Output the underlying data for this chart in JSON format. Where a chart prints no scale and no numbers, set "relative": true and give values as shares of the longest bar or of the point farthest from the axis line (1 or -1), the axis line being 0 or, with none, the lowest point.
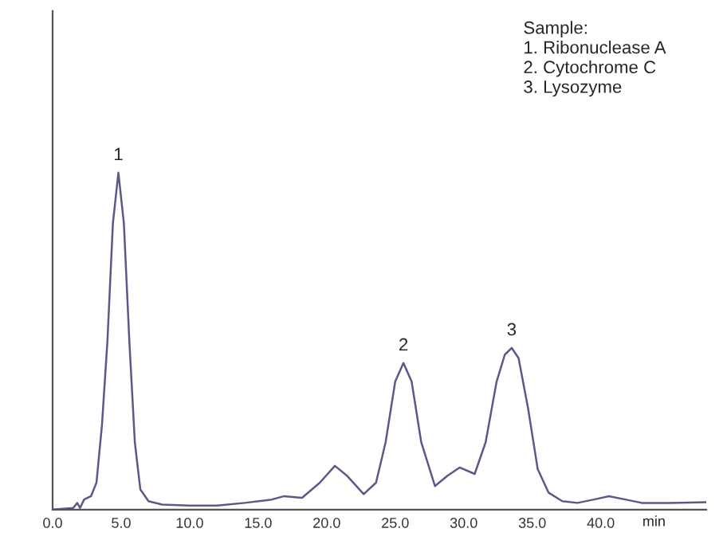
{
  "chart_data": {
    "type": "line",
    "relative": true,
    "xlabel": "min",
    "x": [
      0,
      1.5,
      1.8,
      2.0,
      2.3,
      2.8,
      3.2,
      3.6,
      4.0,
      4.4,
      4.8,
      5.2,
      5.6,
      6.0,
      6.4,
      7,
      8,
      10,
      12,
      14,
      16,
      16.9,
      18.2,
      19.5,
      20.6,
      21.5,
      22.7,
      23.6,
      24.3,
      25.0,
      25.6,
      26.2,
      26.9,
      27.9,
      28.8,
      29.7,
      30.8,
      31.6,
      32.4,
      33.0,
      33.5,
      34.0,
      34.7,
      35.4,
      36.2,
      37.2,
      38.3,
      39.5,
      40.6,
      41.8,
      43,
      45,
      47.7
    ],
    "series": [
      {
        "color": "#5a5a8a",
        "values": [
          0,
          0.005,
          0.02,
          0.005,
          0.03,
          0.04,
          0.08,
          0.25,
          0.5,
          0.85,
          1.0,
          0.85,
          0.5,
          0.2,
          0.06,
          0.025,
          0.015,
          0.012,
          0.012,
          0.02,
          0.03,
          0.04,
          0.035,
          0.08,
          0.13,
          0.1,
          0.046,
          0.08,
          0.2,
          0.38,
          0.435,
          0.38,
          0.2,
          0.07,
          0.1,
          0.125,
          0.106,
          0.2,
          0.38,
          0.46,
          0.48,
          0.45,
          0.3,
          0.12,
          0.05,
          0.025,
          0.02,
          0.03,
          0.04,
          0.03,
          0.02,
          0.02,
          0.022
        ]
      }
    ],
    "xlim": [
      0,
      47.7
    ],
    "xticks": [
      {
        "value": 0,
        "label": "0.0"
      },
      {
        "value": 5,
        "label": "5.0"
      },
      {
        "value": 10,
        "label": "10.0"
      },
      {
        "value": 15,
        "label": "15.0"
      },
      {
        "value": 20,
        "label": "20.0"
      },
      {
        "value": 25,
        "label": "25.0"
      },
      {
        "value": 30,
        "label": "30.0"
      },
      {
        "value": 35,
        "label": "35.0"
      },
      {
        "value": 40,
        "label": "40.0"
      }
    ],
    "annotations": [
      {
        "text": "1",
        "x": 4.8,
        "y": 1.0
      },
      {
        "text": "2",
        "x": 25.6,
        "y": 0.435
      },
      {
        "text": "3",
        "x": 33.5,
        "y": 0.48
      },
      "Sample:\n1. Ribonuclease A\n2. Cytochrome C\n3. Lysozyme"
    ],
    "grid": false,
    "legend": false,
    "line_style": "solid",
    "marker": "none"
  }
}
